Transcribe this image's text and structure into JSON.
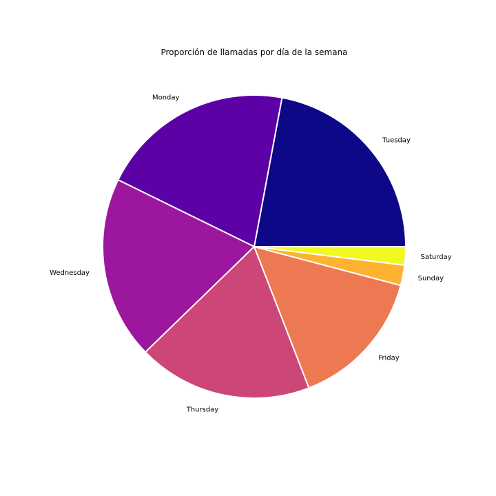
{
  "chart_data": {
    "type": "pie",
    "title": "Proporción de llamadas por día de la semana",
    "start_angle_deg": 0,
    "direction": "counterclockwise",
    "slices": [
      {
        "label": "Tuesday",
        "value": 22.5,
        "color": "#0d0887"
      },
      {
        "label": "Monday",
        "value": 21.1,
        "color": "#5c01a6"
      },
      {
        "label": "Wednesday",
        "value": 19.9,
        "color": "#9c179e"
      },
      {
        "label": "Thursday",
        "value": 19.0,
        "color": "#cc4778"
      },
      {
        "label": "Friday",
        "value": 15.3,
        "color": "#ed7953"
      },
      {
        "label": "Sunday",
        "value": 2.2,
        "color": "#fdb32f"
      },
      {
        "label": "Saturday",
        "value": 2.0,
        "color": "#f0f921"
      }
    ]
  }
}
